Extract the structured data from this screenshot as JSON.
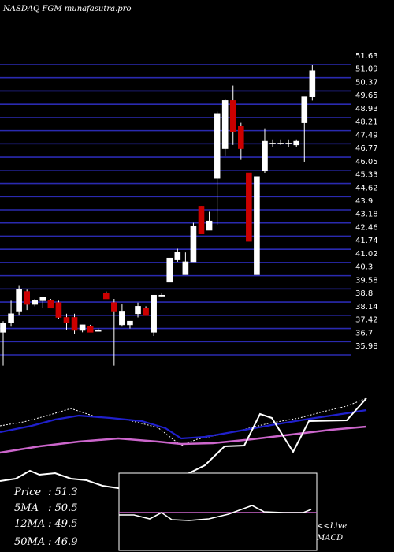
{
  "title": "NASDAQ FGM munafasutra.pro",
  "stats": [
    {
      "label": "Price",
      "value": "51.3"
    },
    {
      "label": "5MA",
      "value": "50.5"
    },
    {
      "label": "12MA",
      "value": "49.5"
    },
    {
      "label": "50MA",
      "value": "46.9"
    }
  ],
  "macd_label": "<<Live MACD",
  "chart_data": {
    "type": "candlestick",
    "ylim": [
      35.3,
      52.2
    ],
    "yticks": [
      "51.63",
      "51.09",
      "50.37",
      "49.65",
      "48.93",
      "48.21",
      "47.49",
      "46.77",
      "46.05",
      "45.33",
      "44.62",
      "43.9",
      "43.18",
      "42.46",
      "41.74",
      "41.02",
      "40.3",
      "39.58",
      "38.8",
      "38.14",
      "37.42",
      "36.7",
      "35.98"
    ],
    "candles": [
      {
        "o": 37.2,
        "h": 37.8,
        "l": 35.4,
        "c": 37.7
      },
      {
        "o": 37.7,
        "h": 38.9,
        "l": 37.5,
        "c": 38.2
      },
      {
        "o": 38.3,
        "h": 39.7,
        "l": 38.1,
        "c": 39.5
      },
      {
        "o": 39.4,
        "h": 39.5,
        "l": 38.4,
        "c": 38.7
      },
      {
        "o": 38.7,
        "h": 39.0,
        "l": 38.6,
        "c": 38.9
      },
      {
        "o": 38.9,
        "h": 39.1,
        "l": 38.5,
        "c": 39.1
      },
      {
        "o": 38.9,
        "h": 39.0,
        "l": 38.5,
        "c": 38.5
      },
      {
        "o": 38.8,
        "h": 38.9,
        "l": 37.9,
        "c": 38.0
      },
      {
        "o": 38.0,
        "h": 38.2,
        "l": 37.3,
        "c": 37.7
      },
      {
        "o": 38.0,
        "h": 38.2,
        "l": 37.1,
        "c": 37.3
      },
      {
        "o": 37.3,
        "h": 37.6,
        "l": 37.2,
        "c": 37.6
      },
      {
        "o": 37.5,
        "h": 37.6,
        "l": 37.2,
        "c": 37.2
      },
      {
        "o": 37.3,
        "h": 37.4,
        "l": 37.3,
        "c": 37.3
      },
      {
        "o": 39.3,
        "h": 39.4,
        "l": 39.0,
        "c": 39.0
      },
      {
        "o": 38.8,
        "h": 39.0,
        "l": 35.4,
        "c": 38.3
      },
      {
        "o": 37.6,
        "h": 38.7,
        "l": 37.5,
        "c": 38.3
      },
      {
        "o": 37.6,
        "h": 37.8,
        "l": 37.4,
        "c": 37.8
      },
      {
        "o": 38.2,
        "h": 38.8,
        "l": 38.0,
        "c": 38.6
      },
      {
        "o": 38.5,
        "h": 38.6,
        "l": 38.1,
        "c": 38.1
      },
      {
        "o": 37.2,
        "h": 39.2,
        "l": 37.0,
        "c": 39.2
      },
      {
        "o": 39.2,
        "h": 39.3,
        "l": 39.1,
        "c": 39.2
      },
      {
        "o": 39.9,
        "h": 41.2,
        "l": 39.9,
        "c": 41.2
      },
      {
        "o": 41.1,
        "h": 41.7,
        "l": 41.0,
        "c": 41.5
      },
      {
        "o": 40.3,
        "h": 41.5,
        "l": 40.3,
        "c": 41.0
      },
      {
        "o": 41.0,
        "h": 43.1,
        "l": 41.0,
        "c": 42.9
      },
      {
        "o": 44.0,
        "h": 44.0,
        "l": 42.5,
        "c": 42.5
      },
      {
        "o": 42.7,
        "h": 43.7,
        "l": 42.7,
        "c": 43.2
      },
      {
        "o": 45.5,
        "h": 49.1,
        "l": 43.0,
        "c": 49.0
      },
      {
        "o": 47.1,
        "h": 49.8,
        "l": 46.7,
        "c": 49.7
      },
      {
        "o": 49.7,
        "h": 50.5,
        "l": 47.3,
        "c": 48.0
      },
      {
        "o": 48.3,
        "h": 48.5,
        "l": 46.5,
        "c": 47.1
      },
      {
        "o": 45.8,
        "h": 45.8,
        "l": 42.1,
        "c": 42.1
      },
      {
        "o": 40.3,
        "h": 45.6,
        "l": 40.3,
        "c": 45.6
      },
      {
        "o": 45.9,
        "h": 48.2,
        "l": 45.8,
        "c": 47.5
      },
      {
        "o": 47.4,
        "h": 47.6,
        "l": 47.2,
        "c": 47.4
      },
      {
        "o": 47.4,
        "h": 47.6,
        "l": 47.3,
        "c": 47.4
      },
      {
        "o": 47.4,
        "h": 47.6,
        "l": 47.2,
        "c": 47.4
      },
      {
        "o": 47.3,
        "h": 47.6,
        "l": 47.2,
        "c": 47.5
      },
      {
        "o": 48.5,
        "h": 49.9,
        "l": 46.4,
        "c": 49.9
      },
      {
        "o": 49.9,
        "h": 51.6,
        "l": 49.7,
        "c": 51.3
      }
    ],
    "colors": {
      "up": "#ffffff",
      "down": "#cc0000",
      "ma_short": "#ffffff",
      "ma_mid": "#2020cc",
      "ma_long": "#cc66cc",
      "macd_signal": "#cc66cc"
    }
  }
}
